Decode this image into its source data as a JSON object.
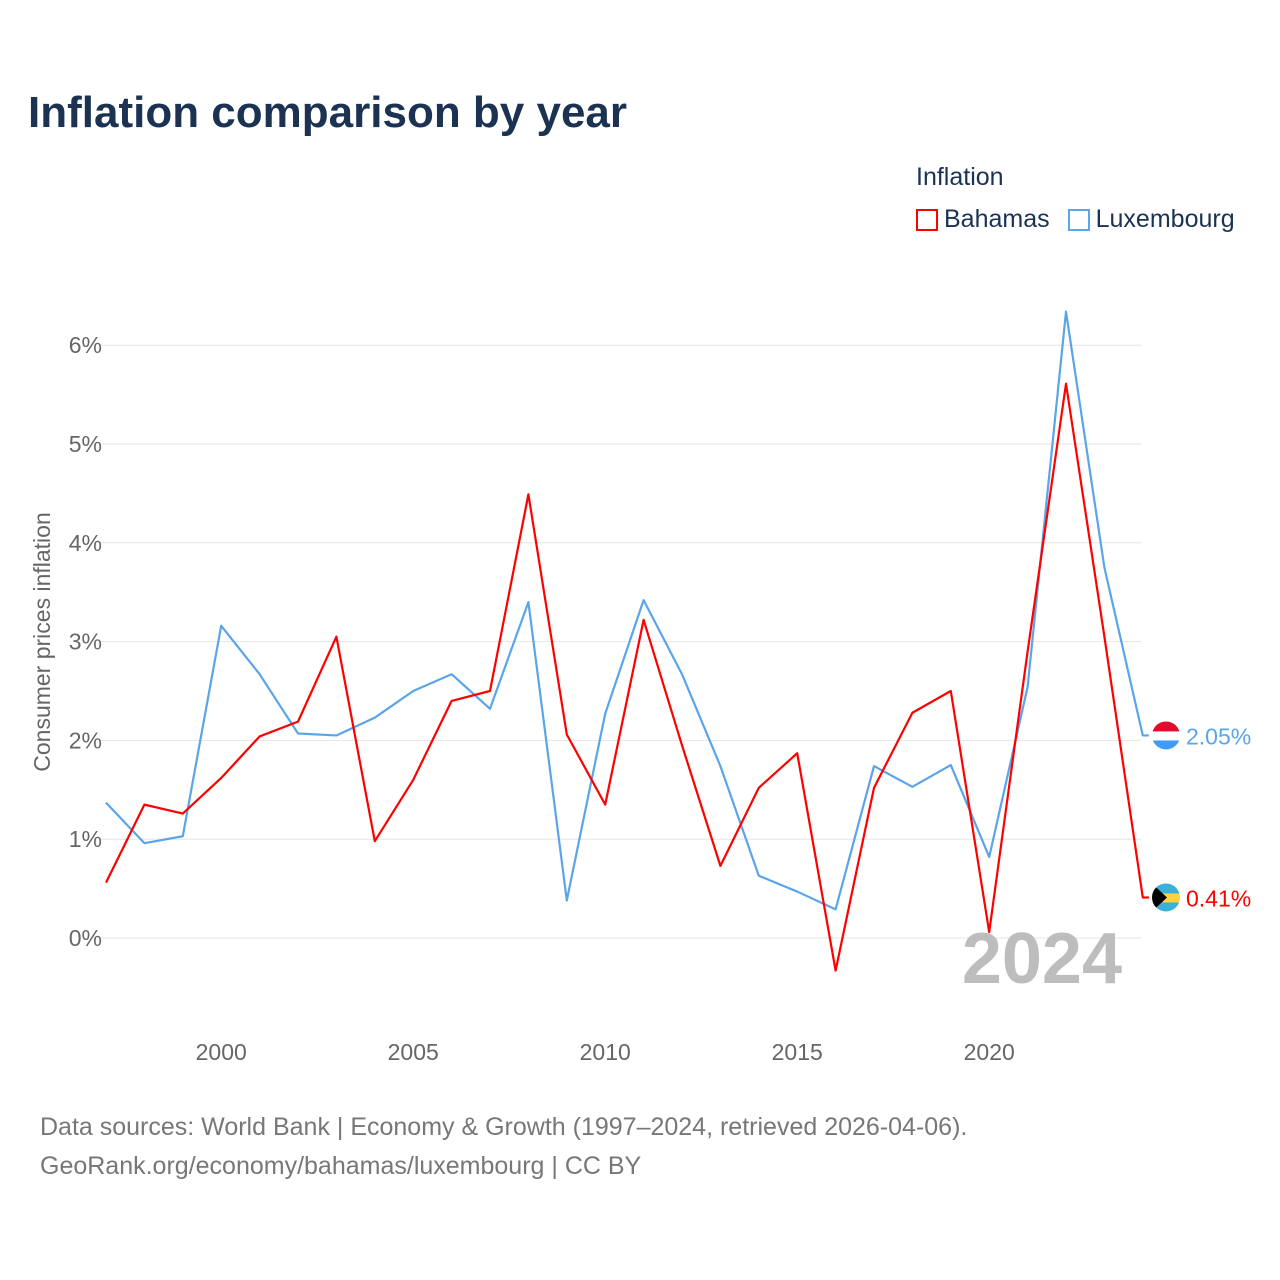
{
  "title": "Inflation comparison by year",
  "legend": {
    "title": "Inflation",
    "items": [
      {
        "label": "Bahamas",
        "color": "#ff0000"
      },
      {
        "label": "Luxembourg",
        "color": "#5aa5ea"
      }
    ]
  },
  "source": {
    "line1": "Data sources: World Bank | Economy & Growth (1997–2024, retrieved 2026-04-06).",
    "line2": "GeoRank.org/economy/bahamas/luxembourg | CC BY"
  },
  "chart_data": {
    "type": "line",
    "title": "Inflation comparison by year",
    "ylabel": "Consumer prices inflation",
    "xlabel": "",
    "x": [
      1997,
      1998,
      1999,
      2000,
      2001,
      2002,
      2003,
      2004,
      2005,
      2006,
      2007,
      2008,
      2009,
      2010,
      2011,
      2012,
      2013,
      2014,
      2015,
      2016,
      2017,
      2018,
      2019,
      2020,
      2021,
      2022,
      2023,
      2024
    ],
    "xticks": [
      2000,
      2005,
      2010,
      2015,
      2020
    ],
    "xtick_labels": [
      "2000",
      "2005",
      "2010",
      "2015",
      "2020"
    ],
    "yticks": [
      0,
      1,
      2,
      3,
      4,
      5,
      6
    ],
    "ytick_labels": [
      "0%",
      "1%",
      "2%",
      "3%",
      "4%",
      "5%",
      "6%"
    ],
    "xlim": [
      1997,
      2024
    ],
    "ylim": [
      -0.8,
      6.6
    ],
    "grid": true,
    "legend_position": "top-right",
    "watermark_year": "2024",
    "series": [
      {
        "name": "Bahamas",
        "color": "#ff0000",
        "end_label": "0.41%",
        "values": [
          0.56,
          1.35,
          1.26,
          1.62,
          2.04,
          2.19,
          3.05,
          0.98,
          1.6,
          2.4,
          2.5,
          4.49,
          2.06,
          1.35,
          3.22,
          1.95,
          0.73,
          1.52,
          1.87,
          -0.33,
          1.52,
          2.28,
          2.5,
          0.06,
          2.9,
          5.61,
          3.05,
          0.41
        ]
      },
      {
        "name": "Luxembourg",
        "color": "#5aa5ea",
        "end_label": "2.05%",
        "values": [
          1.37,
          0.96,
          1.03,
          3.16,
          2.67,
          2.07,
          2.05,
          2.23,
          2.5,
          2.67,
          2.32,
          3.4,
          0.38,
          2.27,
          3.42,
          2.67,
          1.74,
          0.63,
          0.47,
          0.29,
          1.74,
          1.53,
          1.75,
          0.82,
          2.54,
          6.34,
          3.75,
          2.05
        ]
      }
    ]
  }
}
